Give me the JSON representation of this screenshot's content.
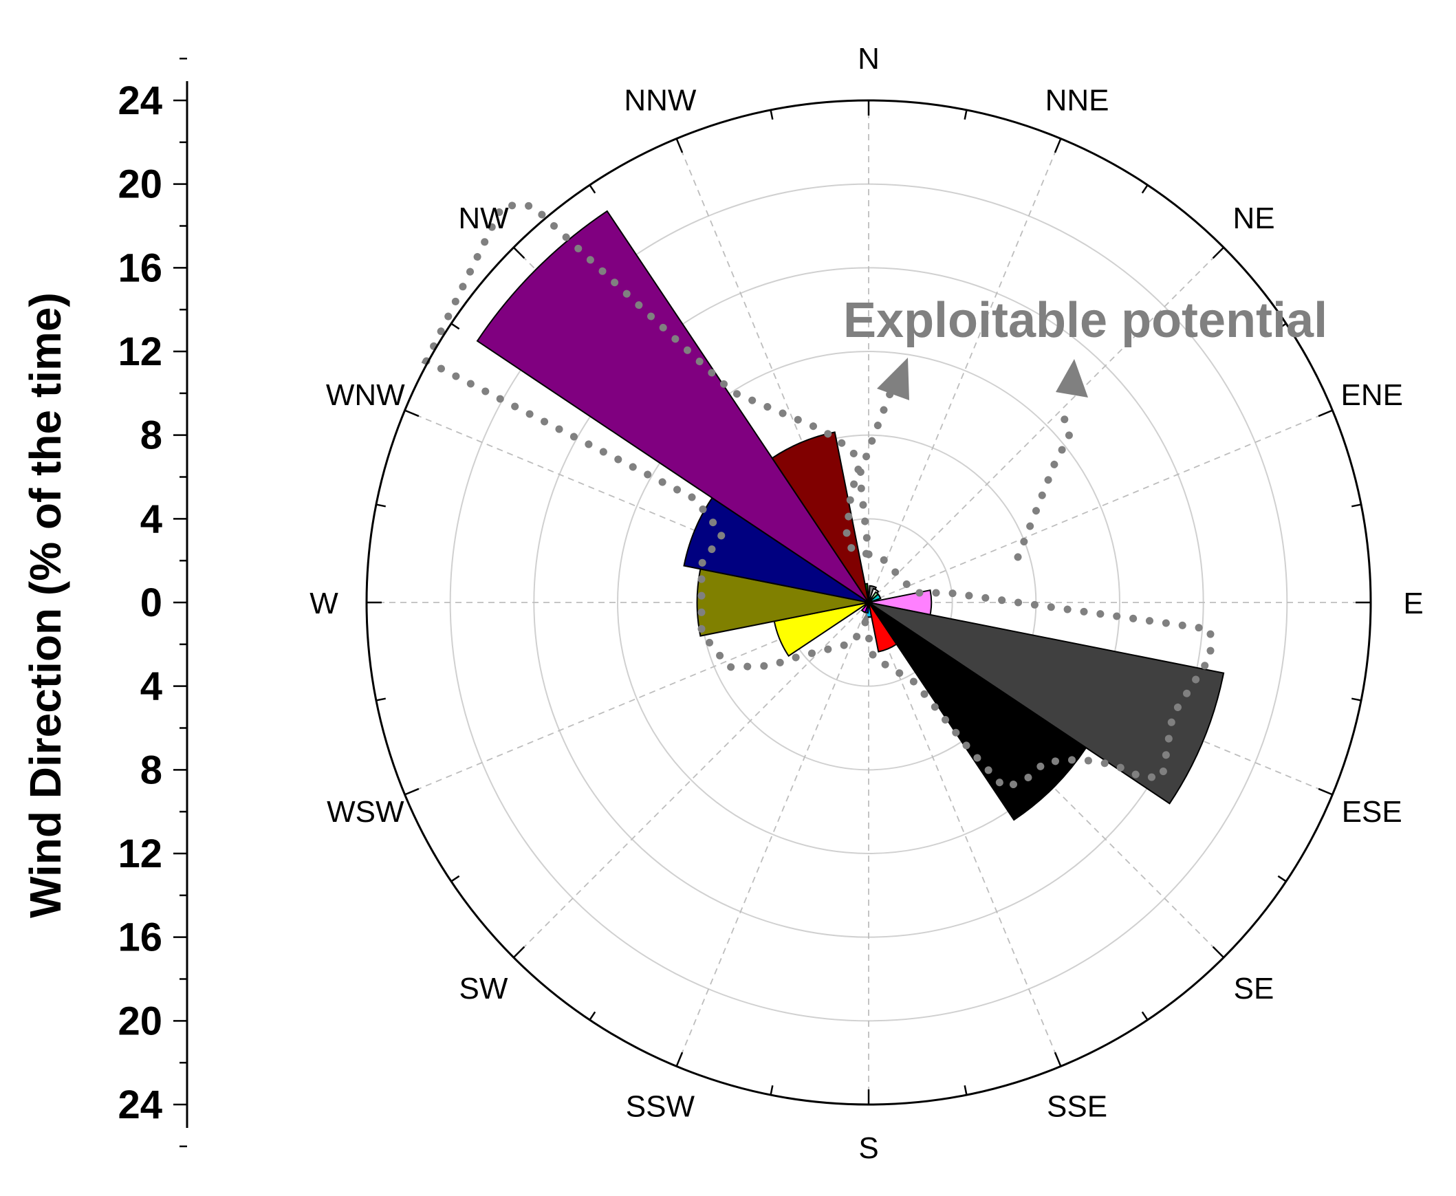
{
  "chart_data": {
    "type": "polar-bar",
    "title": "",
    "ylabel": "Wind Direction (% of the time)",
    "radial_max": 24,
    "radial_ticks": [
      0,
      4,
      8,
      12,
      16,
      20,
      24
    ],
    "y_tick_labels": [
      "24",
      "20",
      "16",
      "12",
      "8",
      "4",
      "0",
      "4",
      "8",
      "12",
      "16",
      "20",
      "24"
    ],
    "directions": [
      "N",
      "NNE",
      "NE",
      "ENE",
      "E",
      "ESE",
      "SE",
      "SSE",
      "S",
      "SSW",
      "SW",
      "WSW",
      "W",
      "WNW",
      "NW",
      "NNW"
    ],
    "bars": [
      {
        "angle": 345,
        "value": 0.9,
        "color": "#008000"
      },
      {
        "angle": 15,
        "value": 0.8,
        "color": "#808080"
      },
      {
        "angle": 30,
        "value": 0.7,
        "color": "#ffffff"
      },
      {
        "angle": 45,
        "value": 0.6,
        "color": "#90ee90"
      },
      {
        "angle": 60,
        "value": 0.6,
        "color": "#00cccc"
      },
      {
        "angle": 90,
        "value": 3.0,
        "color": "#ff80ff"
      },
      {
        "angle": 112.5,
        "value": 17.3,
        "color": "#404040"
      },
      {
        "angle": 135,
        "value": 12.5,
        "color": "#000000"
      },
      {
        "angle": 157.5,
        "value": 2.4,
        "color": "#ff0000"
      },
      {
        "angle": 180,
        "value": 0.7,
        "color": "#00bfff"
      },
      {
        "angle": 195,
        "value": 0.5,
        "color": "#0000ff"
      },
      {
        "angle": 210,
        "value": 0.5,
        "color": "#ff00ff"
      },
      {
        "angle": 247.5,
        "value": 4.6,
        "color": "#ffff00"
      },
      {
        "angle": 270,
        "value": 8.2,
        "color": "#808000"
      },
      {
        "angle": 292.5,
        "value": 9.0,
        "color": "#000080"
      },
      {
        "angle": 315,
        "value": 22.5,
        "color": "#800080"
      },
      {
        "angle": 337.5,
        "value": 8.3,
        "color": "#800000"
      }
    ],
    "annotation": {
      "text": "Exploitable potential",
      "color": "#808080"
    }
  }
}
